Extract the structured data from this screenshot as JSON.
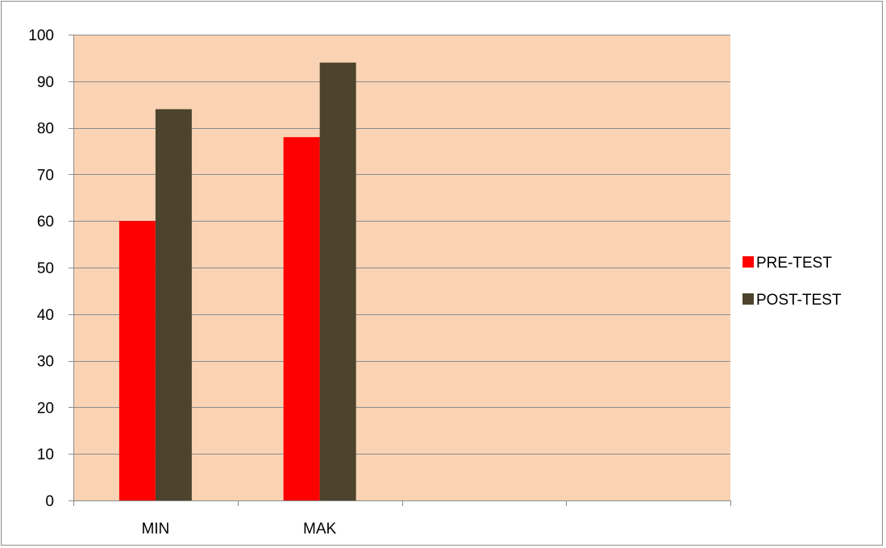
{
  "chart_data": {
    "type": "bar",
    "categories": [
      "MIN",
      "MAK",
      "",
      ""
    ],
    "series": [
      {
        "name": "PRE-TEST",
        "values": [
          60,
          78,
          null,
          null
        ],
        "color": "#ff0000"
      },
      {
        "name": "POST-TEST",
        "values": [
          84,
          94,
          null,
          null
        ],
        "color": "#4c442c"
      }
    ],
    "ylim": [
      0,
      100
    ],
    "yticks": [
      0,
      10,
      20,
      30,
      40,
      50,
      60,
      70,
      80,
      90,
      100
    ],
    "xlabel": "",
    "ylabel": "",
    "title": "",
    "grid": true,
    "legend_position": "right",
    "plot_background": "#fad3b5"
  }
}
